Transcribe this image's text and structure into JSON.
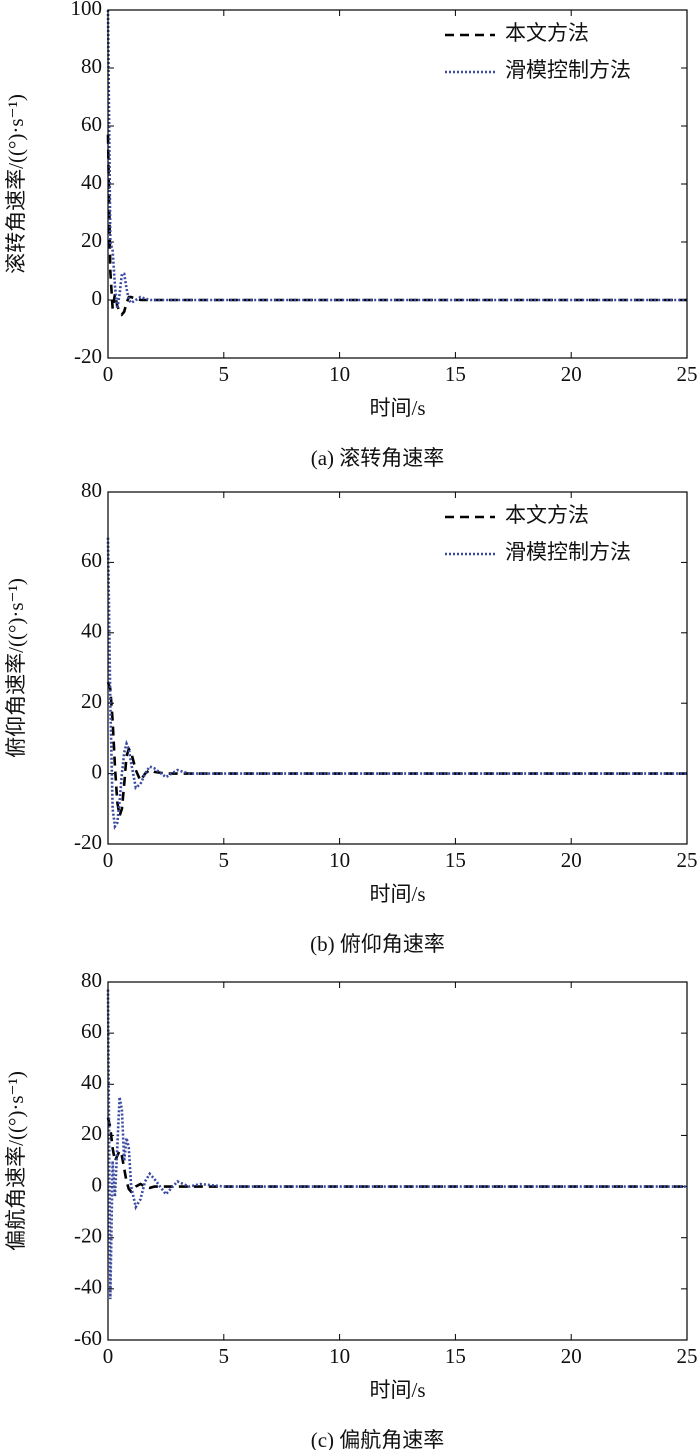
{
  "chart_data": [
    {
      "type": "line",
      "xlabel": "时间/s",
      "ylabel": "滚转角速率/((°)·s⁻¹)",
      "caption": "(a) 滚转角速率",
      "x": [
        0,
        0.1,
        0.2,
        0.3,
        0.4,
        0.5,
        0.6,
        0.7,
        0.8,
        0.9,
        1.0,
        1.2,
        1.4,
        1.6,
        1.8,
        2.0,
        2.5,
        3,
        3.5,
        4,
        5,
        10,
        15,
        20,
        25
      ],
      "series": [
        {
          "name": "本文方法",
          "color": "#000000",
          "dash": "dashed",
          "values": [
            57,
            10,
            -3,
            2,
            -2,
            -4,
            -5,
            -4,
            -1,
            1,
            1,
            0.5,
            0,
            0,
            0,
            0,
            0,
            0,
            0,
            0,
            0,
            0,
            0,
            0,
            0
          ]
        },
        {
          "name": "滑模控制方法",
          "color": "#3a4aa0",
          "dash": "dotted",
          "values": [
            100,
            20,
            17,
            5,
            -3,
            2,
            9,
            9,
            4,
            0,
            -1,
            0,
            1,
            0.5,
            0,
            0,
            0,
            0,
            0,
            0,
            0,
            0,
            0,
            0,
            0
          ]
        }
      ],
      "xlim": [
        0,
        25
      ],
      "xticks": [
        0,
        5,
        10,
        15,
        20,
        25
      ],
      "ylim": [
        -20,
        100
      ],
      "yticks": [
        -20,
        0,
        20,
        40,
        60,
        80,
        100
      ],
      "legend": "upper right",
      "grid": false
    },
    {
      "type": "line",
      "xlabel": "时间/s",
      "ylabel": "俯仰角速率/((°)·s⁻¹)",
      "caption": "(b) 俯仰角速率",
      "x": [
        0,
        0.1,
        0.2,
        0.3,
        0.4,
        0.5,
        0.6,
        0.7,
        0.8,
        0.9,
        1.0,
        1.2,
        1.4,
        1.6,
        1.8,
        2.0,
        2.5,
        3,
        3.5,
        4,
        5,
        10,
        15,
        20,
        25
      ],
      "series": [
        {
          "name": "本文方法",
          "color": "#000000",
          "dash": "dashed",
          "values": [
            26,
            24,
            15,
            2,
            -8,
            -12,
            -10,
            -3,
            5,
            7,
            6,
            1,
            -2,
            0,
            1,
            0.5,
            0,
            0,
            0,
            0,
            0,
            0,
            0,
            0,
            0
          ]
        },
        {
          "name": "滑模控制方法",
          "color": "#3a4aa0",
          "dash": "dotted",
          "values": [
            67,
            20,
            -10,
            -15,
            -14,
            -8,
            0,
            6,
            8.5,
            7,
            3,
            -4,
            -3,
            0,
            2,
            1.5,
            -1,
            1,
            0,
            0,
            0,
            0,
            0,
            0,
            0
          ]
        }
      ],
      "xlim": [
        0,
        25
      ],
      "xticks": [
        0,
        5,
        10,
        15,
        20,
        25
      ],
      "ylim": [
        -20,
        80
      ],
      "yticks": [
        -20,
        0,
        20,
        40,
        60,
        80
      ],
      "legend": "upper right",
      "grid": false
    },
    {
      "type": "line",
      "xlabel": "时间/s",
      "ylabel": "偏航角速率/((°)·s⁻¹)",
      "caption": "(c) 偏航角速率",
      "x": [
        0,
        0.1,
        0.2,
        0.3,
        0.4,
        0.5,
        0.6,
        0.7,
        0.8,
        0.9,
        1.0,
        1.2,
        1.4,
        1.6,
        1.8,
        2.0,
        2.5,
        3,
        3.5,
        4,
        5,
        10,
        15,
        20,
        25
      ],
      "series": [
        {
          "color": "#000000",
          "dash": "dashed",
          "values": [
            27,
            23,
            15,
            10,
            12,
            14,
            12,
            7,
            2,
            -1,
            -2,
            0,
            1,
            0,
            -0.5,
            0,
            0,
            0,
            0,
            0,
            0,
            0,
            0,
            0,
            0
          ]
        },
        {
          "color": "#3a4aa0",
          "dash": "dotted",
          "values": [
            77,
            -44,
            10,
            -4,
            15,
            35,
            30,
            10,
            19,
            15,
            0,
            -8,
            -5,
            2,
            5,
            3,
            -3,
            2,
            0,
            1,
            0,
            0,
            0,
            0,
            0
          ]
        }
      ],
      "xlim": [
        0,
        25
      ],
      "xticks": [
        0,
        5,
        10,
        15,
        20,
        25
      ],
      "ylim": [
        -60,
        80
      ],
      "yticks": [
        -60,
        -40,
        -20,
        0,
        20,
        40,
        60,
        80
      ],
      "grid": false
    }
  ]
}
